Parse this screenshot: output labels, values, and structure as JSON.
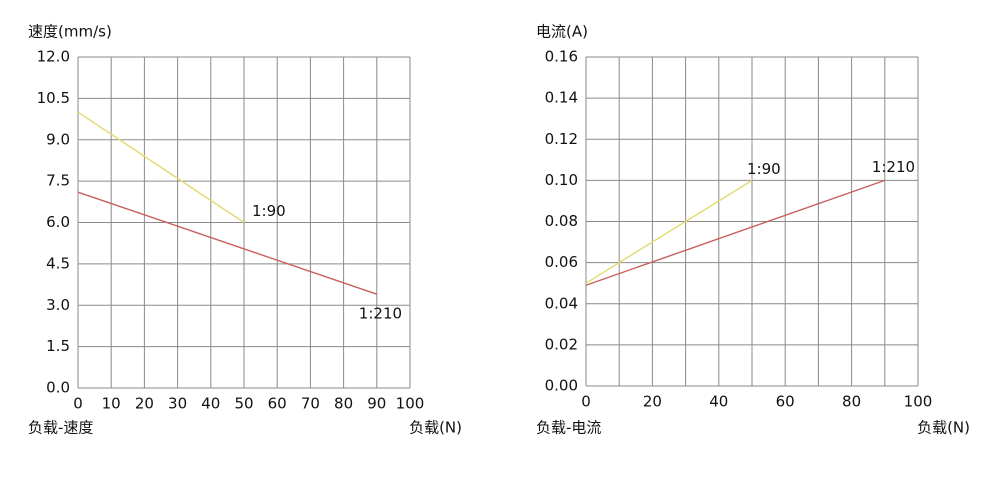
{
  "chart_data": [
    {
      "type": "line",
      "ylabel": "速度(mm/s)",
      "subtitle": "负载-速度",
      "xlabel": "负载(N)",
      "xlim": [
        0,
        100
      ],
      "xticks": [
        0,
        10,
        20,
        30,
        40,
        50,
        60,
        70,
        80,
        90,
        100
      ],
      "ylim": [
        0,
        12
      ],
      "yticks": [
        {
          "value": 0,
          "label": "0.0"
        },
        1.5,
        {
          "value": 3,
          "label": "3.0"
        },
        4.5,
        {
          "value": 6,
          "label": "6.0"
        },
        7.5,
        {
          "value": 9,
          "label": "9.0"
        },
        10.5,
        {
          "value": 12,
          "label": "12.0"
        }
      ],
      "grid": true,
      "series": [
        {
          "name": "1:90",
          "color": "#e2dc6e",
          "x": [
            0,
            50
          ],
          "values": [
            10,
            6
          ]
        },
        {
          "name": "1:210",
          "color": "#c8605e",
          "x": [
            0,
            90
          ],
          "values": [
            7.1,
            3.4
          ]
        }
      ]
    },
    {
      "type": "line",
      "ylabel": "电流(A)",
      "subtitle": "负载-电流",
      "xlabel": "负载(N)",
      "xlim": [
        0,
        100
      ],
      "xticks": [
        0,
        20,
        40,
        60,
        80,
        100
      ],
      "x_minor_ticks": [
        10,
        30,
        50,
        70,
        90
      ],
      "ylim": [
        0,
        0.16
      ],
      "yticks": [
        {
          "value": 0,
          "label": "0.00"
        },
        0.02,
        0.04,
        0.06,
        0.08,
        {
          "value": 0.1,
          "label": "0.10"
        },
        0.12,
        0.14,
        0.16
      ],
      "grid": true,
      "series": [
        {
          "name": "1:90",
          "color": "#e2dc6e",
          "x": [
            0,
            50
          ],
          "values": [
            0.05,
            0.1
          ]
        },
        {
          "name": "1:210",
          "color": "#c8605e",
          "x": [
            0,
            90
          ],
          "values": [
            0.049,
            0.1
          ]
        }
      ]
    }
  ]
}
